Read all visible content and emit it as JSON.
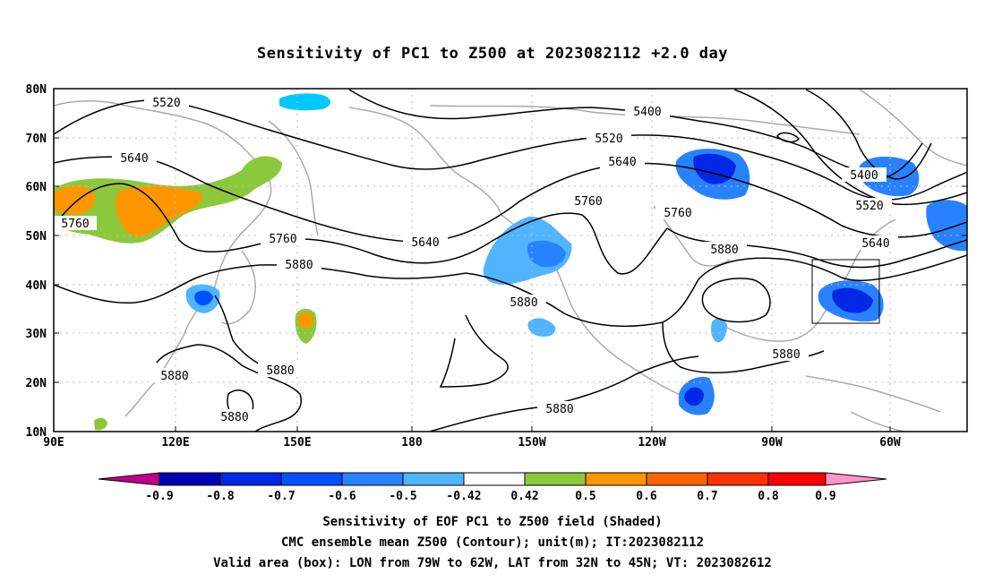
{
  "title": "Sensitivity of PC1 to Z500 at 2023082112 +2.0 day",
  "lat_labels": [
    "80N",
    "70N",
    "60N",
    "50N",
    "40N",
    "30N",
    "20N",
    "10N"
  ],
  "lon_labels": [
    "90E",
    "120E",
    "150E",
    "180",
    "150W",
    "120W",
    "90W",
    "60W"
  ],
  "contour_labels": {
    "c5520a": "5520",
    "c5640a": "5640",
    "c5760a": "5760",
    "c5760b": "5760",
    "c5880a": "5880",
    "c5640b": "5640",
    "c5400a": "5400",
    "c5520b": "5520",
    "c5640c": "5640",
    "c5760c": "5760",
    "c5760d": "5760",
    "c5880b": "5880",
    "c5880c": "5880",
    "c5880d": "5880",
    "c5400b": "5400",
    "c5520c": "5520",
    "c5640d": "5640",
    "c5880e": "5880",
    "c5880f": "5880",
    "c5880g": "5880",
    "c5880h": "5880"
  },
  "colorbar": {
    "labels": [
      "-0.9",
      "-0.8",
      "-0.7",
      "-0.6",
      "-0.5",
      "-0.42",
      "0.42",
      "0.5",
      "0.6",
      "0.7",
      "0.8",
      "0.9"
    ],
    "colors": [
      "#c0008c",
      "#0000b4",
      "#0028e6",
      "#0050ff",
      "#2882ff",
      "#50b4ff",
      "#00c8ff",
      "#ffffff",
      "#8cc83c",
      "#ff9600",
      "#ff6400",
      "#ff3200",
      "#ff0000",
      "#ff96c8"
    ]
  },
  "captions": {
    "line1": "Sensitivity of EOF PC1 to Z500 field (Shaded)",
    "line2": "CMC ensemble mean Z500 (Contour); unit(m); IT:2023082112",
    "line3": "Valid area (box): LON from 79W to 62W, LAT from 32N to 45N; VT: 2023082612"
  }
}
